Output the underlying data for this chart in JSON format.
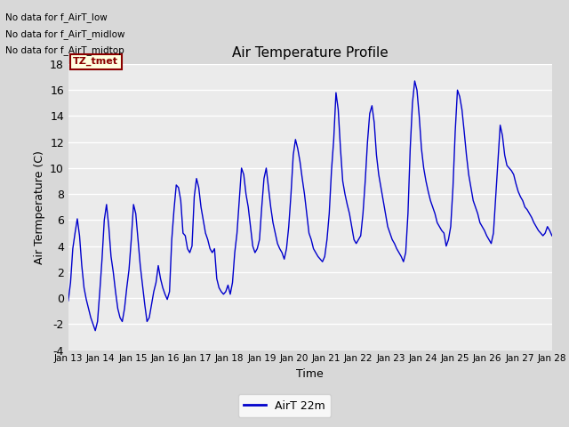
{
  "title": "Air Temperature Profile",
  "xlabel": "Time",
  "ylabel": "Air Termperature (C)",
  "legend_label": "AirT 22m",
  "no_data_texts": [
    "No data for f_AirT_low",
    "No data for f_AirT_midlow",
    "No data for f_AirT_midtop"
  ],
  "tz_tmet_label": "TZ_tmet",
  "line_color": "#0000CC",
  "fig_facecolor": "#D8D8D8",
  "plot_facecolor": "#EBEBEB",
  "ylim": [
    -4,
    18
  ],
  "yticks": [
    -4,
    -2,
    0,
    2,
    4,
    6,
    8,
    10,
    12,
    14,
    16,
    18
  ],
  "x_tick_labels": [
    "Jan 13",
    "Jan 14",
    "Jan 15",
    "Jan 16",
    "Jan 17",
    "Jan 18",
    "Jan 19",
    "Jan 20",
    "Jan 21",
    "Jan 22",
    "Jan 23",
    "Jan 24",
    "Jan 25",
    "Jan 26",
    "Jan 27",
    "Jan 28"
  ],
  "temp_data": [
    -0.2,
    1.2,
    3.8,
    5.0,
    6.1,
    4.8,
    2.5,
    0.8,
    -0.1,
    -0.8,
    -1.5,
    -2.0,
    -2.5,
    -1.8,
    0.5,
    3.0,
    6.0,
    7.2,
    5.5,
    3.2,
    2.0,
    0.5,
    -0.8,
    -1.5,
    -1.8,
    -0.8,
    0.8,
    2.2,
    4.5,
    7.2,
    6.5,
    4.5,
    2.5,
    1.0,
    -0.5,
    -1.8,
    -1.5,
    -0.5,
    0.5,
    1.2,
    2.5,
    1.5,
    0.8,
    0.3,
    -0.1,
    0.5,
    4.5,
    6.8,
    8.7,
    8.5,
    7.5,
    5.0,
    4.8,
    3.8,
    3.5,
    4.0,
    7.8,
    9.2,
    8.5,
    7.0,
    6.0,
    5.0,
    4.5,
    3.8,
    3.5,
    3.8,
    1.5,
    0.8,
    0.5,
    0.3,
    0.5,
    1.0,
    0.3,
    1.2,
    3.5,
    5.0,
    7.5,
    10.0,
    9.5,
    8.0,
    7.0,
    5.5,
    4.0,
    3.5,
    3.8,
    4.5,
    7.0,
    9.2,
    10.0,
    8.5,
    7.0,
    5.8,
    5.0,
    4.2,
    3.8,
    3.5,
    3.0,
    3.8,
    5.5,
    8.0,
    11.0,
    12.2,
    11.5,
    10.5,
    9.2,
    8.0,
    6.5,
    5.0,
    4.5,
    3.8,
    3.5,
    3.2,
    3.0,
    2.8,
    3.2,
    4.5,
    6.5,
    9.8,
    12.2,
    15.8,
    14.5,
    11.5,
    9.0,
    8.0,
    7.2,
    6.5,
    5.5,
    4.5,
    4.2,
    4.5,
    4.8,
    6.5,
    9.0,
    12.0,
    14.2,
    14.8,
    13.5,
    11.0,
    9.5,
    8.5,
    7.5,
    6.5,
    5.5,
    5.0,
    4.5,
    4.2,
    3.8,
    3.5,
    3.2,
    2.8,
    3.5,
    6.5,
    11.5,
    15.0,
    16.7,
    16.0,
    14.0,
    11.5,
    10.0,
    9.0,
    8.2,
    7.5,
    7.0,
    6.5,
    5.8,
    5.5,
    5.2,
    5.0,
    4.0,
    4.5,
    5.5,
    8.5,
    12.8,
    16.0,
    15.5,
    14.5,
    12.8,
    11.0,
    9.5,
    8.5,
    7.5,
    7.0,
    6.5,
    5.8,
    5.5,
    5.2,
    4.8,
    4.5,
    4.2,
    5.0,
    7.8,
    10.5,
    13.3,
    12.5,
    11.0,
    10.2,
    10.0,
    9.8,
    9.5,
    8.8,
    8.2,
    7.8,
    7.5,
    7.0,
    6.8,
    6.5,
    6.2,
    5.8,
    5.5,
    5.2,
    5.0,
    4.8,
    5.0,
    5.5,
    5.2,
    4.8
  ]
}
